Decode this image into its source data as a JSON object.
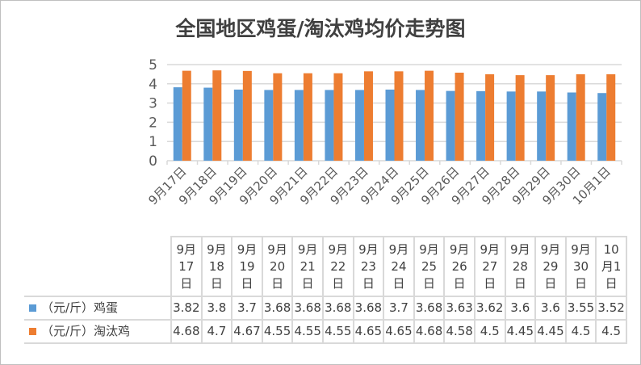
{
  "chart_data": {
    "type": "bar",
    "title": "全国地区鸡蛋/淘汰鸡均价走势图",
    "categories": [
      "9月17日",
      "9月18日",
      "9月19日",
      "9月20日",
      "9月21日",
      "9月22日",
      "9月23日",
      "9月24日",
      "9月25日",
      "9月26日",
      "9月27日",
      "9月28日",
      "9月29日",
      "9月30日",
      "10月1日"
    ],
    "table_headers": [
      [
        "9月",
        "17",
        "日"
      ],
      [
        "9月",
        "18",
        "日"
      ],
      [
        "9月",
        "19",
        "日"
      ],
      [
        "9月",
        "20",
        "日"
      ],
      [
        "9月",
        "21",
        "日"
      ],
      [
        "9月",
        "22",
        "日"
      ],
      [
        "9月",
        "23",
        "日"
      ],
      [
        "9月",
        "24",
        "日"
      ],
      [
        "9月",
        "25",
        "日"
      ],
      [
        "9月",
        "26",
        "日"
      ],
      [
        "9月",
        "27",
        "日"
      ],
      [
        "9月",
        "28",
        "日"
      ],
      [
        "9月",
        "29",
        "日"
      ],
      [
        "9月",
        "30",
        "日"
      ],
      [
        "10",
        "月1",
        "日"
      ]
    ],
    "series": [
      {
        "name": "（元/斤）鸡蛋",
        "color": "#5b9bd5",
        "values": [
          3.82,
          3.8,
          3.7,
          3.68,
          3.68,
          3.68,
          3.68,
          3.7,
          3.68,
          3.63,
          3.62,
          3.6,
          3.6,
          3.55,
          3.52
        ]
      },
      {
        "name": "（元/斤）淘汰鸡",
        "color": "#ed7d31",
        "values": [
          4.68,
          4.7,
          4.67,
          4.55,
          4.55,
          4.55,
          4.65,
          4.65,
          4.68,
          4.58,
          4.5,
          4.45,
          4.45,
          4.5,
          4.5
        ]
      }
    ],
    "ylim": [
      0,
      5
    ],
    "yticks": [
      "0",
      "1",
      "2",
      "3",
      "4",
      "5"
    ],
    "grid": true,
    "legend": "data-table"
  }
}
